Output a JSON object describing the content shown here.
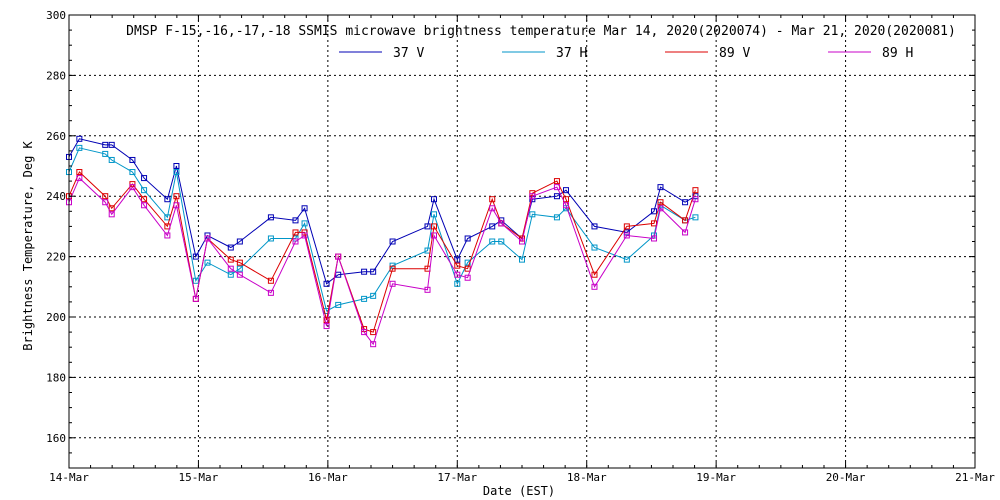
{
  "chart_data": {
    "type": "line",
    "title": "DMSP F-15,-16,-17,-18 SSMIS microwave brightness temperature Mar 14, 2020(2020074) - Mar 21, 2020(2020081)",
    "xlabel": "Date (EST)",
    "ylabel": "Brightness Temperature, Deg K",
    "xlim": [
      0,
      7
    ],
    "ylim": [
      150,
      300
    ],
    "xticks": [
      {
        "v": 0,
        "label": "14-Mar"
      },
      {
        "v": 1,
        "label": "15-Mar"
      },
      {
        "v": 2,
        "label": "16-Mar"
      },
      {
        "v": 3,
        "label": "17-Mar"
      },
      {
        "v": 4,
        "label": "18-Mar"
      },
      {
        "v": 5,
        "label": "19-Mar"
      },
      {
        "v": 6,
        "label": "20-Mar"
      },
      {
        "v": 7,
        "label": "21-Mar"
      }
    ],
    "yticks": [
      {
        "v": 160,
        "label": "160"
      },
      {
        "v": 180,
        "label": "180"
      },
      {
        "v": 200,
        "label": "200"
      },
      {
        "v": 220,
        "label": "220"
      },
      {
        "v": 240,
        "label": "240"
      },
      {
        "v": 260,
        "label": "260"
      },
      {
        "v": 280,
        "label": "280"
      },
      {
        "v": 300,
        "label": "300"
      }
    ],
    "grid": true,
    "legend_position": "top-center",
    "x": [
      0.0,
      0.08,
      0.28,
      0.33,
      0.49,
      0.58,
      0.76,
      0.83,
      0.98,
      1.07,
      1.25,
      1.32,
      1.56,
      1.75,
      1.82,
      1.99,
      2.08,
      2.28,
      2.35,
      2.5,
      2.77,
      2.82,
      3.0,
      3.08,
      3.27,
      3.34,
      3.5,
      3.58,
      3.77,
      3.84,
      4.06,
      4.31,
      4.52,
      4.57,
      4.76,
      4.84
    ],
    "series": [
      {
        "name": "37 V",
        "color": "#0000b4",
        "values": [
          253,
          259,
          257,
          257,
          252,
          246,
          239,
          250,
          220,
          227,
          223,
          225,
          233,
          232,
          236,
          211,
          214,
          215,
          215,
          225,
          230,
          239,
          219,
          226,
          230,
          232,
          226,
          239,
          240,
          242,
          230,
          228,
          235,
          243,
          238,
          240
        ]
      },
      {
        "name": "37 H",
        "color": "#0096c8",
        "values": [
          248,
          256,
          254,
          252,
          248,
          242,
          233,
          248,
          212,
          218,
          214,
          216,
          226,
          226,
          231,
          202,
          204,
          206,
          207,
          217,
          222,
          234,
          211,
          218,
          225,
          225,
          219,
          234,
          233,
          236,
          223,
          219,
          227,
          237,
          232,
          233
        ]
      },
      {
        "name": "89 V",
        "color": "#dc0000",
        "values": [
          240,
          248,
          240,
          236,
          244,
          239,
          230,
          240,
          206,
          226,
          219,
          218,
          212,
          228,
          228,
          199,
          220,
          196,
          195,
          216,
          216,
          230,
          217,
          216,
          239,
          231,
          226,
          241,
          245,
          239,
          214,
          230,
          231,
          238,
          232,
          242
        ]
      },
      {
        "name": "89 H",
        "color": "#c800c8",
        "values": [
          238,
          246,
          238,
          234,
          243,
          237,
          227,
          237,
          206,
          226,
          216,
          214,
          208,
          225,
          227,
          197,
          220,
          195,
          191,
          211,
          209,
          227,
          214,
          213,
          236,
          231,
          225,
          240,
          243,
          237,
          210,
          227,
          226,
          236,
          228,
          239
        ]
      }
    ]
  }
}
